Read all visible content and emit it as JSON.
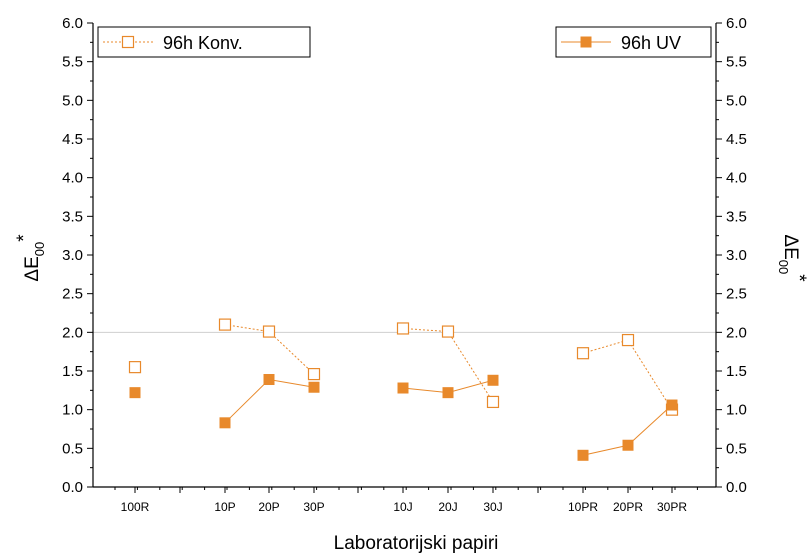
{
  "chart_data": {
    "type": "scatter",
    "xlabel": "Laboratorijski papiri",
    "ylabel_left": "ΔE",
    "ylabel_left_sub": "00",
    "ylabel_left_sup": "*",
    "ylabel_right": "ΔE",
    "ylabel_right_sub": "00",
    "ylabel_right_sup": "*",
    "categories": [
      "100R",
      "10P",
      "20P",
      "30P",
      "10J",
      "20J",
      "30J",
      "10PR",
      "20PR",
      "30PR"
    ],
    "groups": [
      [
        "100R"
      ],
      [
        "10P",
        "20P",
        "30P"
      ],
      [
        "10J",
        "20J",
        "30J"
      ],
      [
        "10PR",
        "20PR",
        "30PR"
      ]
    ],
    "ylim": [
      0,
      6
    ],
    "yticks": [
      "0.0",
      "0.5",
      "1.0",
      "1.5",
      "2.0",
      "2.5",
      "3.0",
      "3.5",
      "4.0",
      "4.5",
      "5.0",
      "5.5",
      "6.0"
    ],
    "reference_line": 2.0,
    "series": [
      {
        "name": "96h Konv.",
        "marker": "open-square",
        "line": "dotted",
        "color": "#e8892b",
        "values": [
          1.55,
          2.1,
          2.01,
          1.46,
          2.05,
          2.01,
          1.1,
          1.73,
          1.9,
          1.0
        ]
      },
      {
        "name": "96h UV",
        "marker": "filled-square",
        "line": "solid",
        "color": "#e8892b",
        "values": [
          1.22,
          0.83,
          1.39,
          1.29,
          1.28,
          1.22,
          1.38,
          0.41,
          0.54,
          1.06
        ]
      }
    ],
    "legend": [
      "top-left",
      "top-right"
    ],
    "grid": false
  }
}
